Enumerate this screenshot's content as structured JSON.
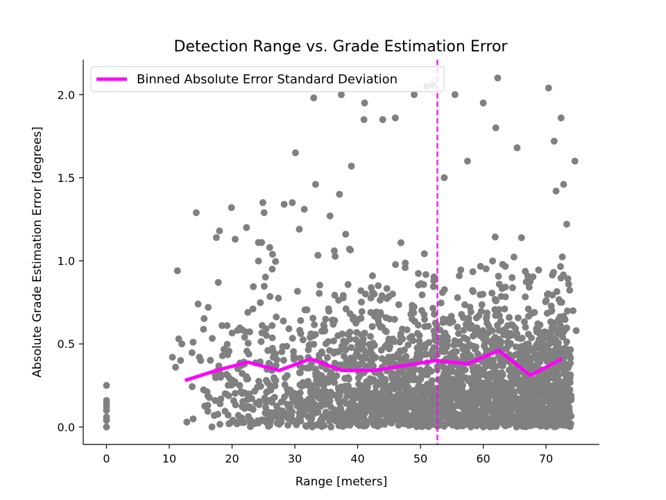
{
  "chart_data": {
    "type": "scatter",
    "title": "Detection Range vs. Grade Estimation Error",
    "xlabel": "Range [meters]",
    "ylabel": "Absolute Grade Estimation Error [degrees]",
    "xlim": [
      -3.7,
      78.5
    ],
    "ylim": [
      -0.105,
      2.21
    ],
    "xticks": [
      0,
      10,
      20,
      30,
      40,
      50,
      60,
      70
    ],
    "yticks": [
      0.0,
      0.5,
      1.0,
      1.5,
      2.0
    ],
    "xtick_labels": [
      "0",
      "10",
      "20",
      "30",
      "40",
      "50",
      "60",
      "70"
    ],
    "ytick_labels": [
      "0.0",
      "0.5",
      "1.0",
      "1.5",
      "2.0"
    ],
    "grid": false,
    "legend": {
      "placement": "top-left",
      "entries": [
        "Binned Absolute Error Standard Deviation"
      ]
    },
    "colors": {
      "points": "#808080",
      "line": "#ff00ff",
      "vline": "#ff00ff"
    },
    "scatter_points_zero_range": [
      [
        0,
        0.25
      ],
      [
        0,
        0.16
      ],
      [
        0,
        0.14
      ],
      [
        0,
        0.12
      ],
      [
        0,
        0.1
      ],
      [
        0,
        0.06
      ],
      [
        0,
        0.04
      ],
      [
        0,
        0.0
      ]
    ],
    "scatter_points_outliers": [
      [
        11.3,
        0.94
      ],
      [
        11.0,
        0.36
      ],
      [
        10.5,
        0.42
      ],
      [
        11.5,
        0.53
      ],
      [
        12.0,
        0.5
      ],
      [
        11.8,
        0.4
      ],
      [
        12.8,
        0.03
      ],
      [
        13.8,
        0.51
      ],
      [
        14.3,
        1.29
      ],
      [
        14.6,
        0.74
      ],
      [
        14.8,
        0.42
      ],
      [
        15.0,
        0.4
      ],
      [
        16.2,
        0.72
      ],
      [
        17.5,
        1.14
      ],
      [
        17.8,
        0.87
      ],
      [
        18.0,
        1.18
      ],
      [
        18.4,
        0.61
      ],
      [
        19.2,
        0.61
      ],
      [
        19.9,
        1.32
      ],
      [
        20.5,
        1.13
      ],
      [
        21.5,
        0.37
      ],
      [
        22.0,
        0.54
      ],
      [
        22.3,
        1.2
      ],
      [
        18.9,
        0.2
      ],
      [
        21.0,
        0.07
      ],
      [
        21.2,
        0.04
      ],
      [
        20.1,
        0.28
      ],
      [
        24.9,
        1.35
      ],
      [
        25.1,
        1.29
      ],
      [
        24.2,
        1.11
      ],
      [
        24.7,
        1.11
      ],
      [
        26.0,
        1.08
      ],
      [
        26.4,
        0.95
      ],
      [
        28.3,
        1.34
      ],
      [
        30.1,
        1.65
      ],
      [
        30.7,
        1.19
      ],
      [
        29.6,
        1.35
      ],
      [
        31.5,
        1.31
      ],
      [
        33.3,
        1.46
      ],
      [
        33.0,
        1.98
      ],
      [
        35.6,
        1.27
      ],
      [
        37.1,
        1.4
      ],
      [
        37.4,
        2.0
      ],
      [
        38.1,
        1.16
      ],
      [
        38.7,
        1.07
      ],
      [
        39.0,
        1.57
      ],
      [
        41.0,
        1.85
      ],
      [
        41.1,
        1.95
      ],
      [
        44.0,
        1.85
      ],
      [
        46.0,
        1.86
      ],
      [
        49.0,
        2.0
      ],
      [
        51.0,
        2.05
      ],
      [
        52.0,
        2.06
      ],
      [
        55.5,
        2.0
      ],
      [
        53.8,
        1.5
      ],
      [
        57.5,
        1.6
      ],
      [
        60.0,
        1.95
      ],
      [
        62.3,
        2.1
      ],
      [
        62.0,
        1.8
      ],
      [
        65.4,
        1.68
      ],
      [
        70.4,
        2.04
      ],
      [
        71.3,
        1.72
      ],
      [
        72.4,
        1.86
      ],
      [
        72.8,
        1.46
      ],
      [
        74.6,
        1.6
      ],
      [
        73.3,
        1.22
      ],
      [
        71.6,
        1.42
      ],
      [
        73.6,
        0.86
      ],
      [
        74.3,
        0.7
      ],
      [
        74.0,
        0.17
      ],
      [
        71.2,
        0.93
      ],
      [
        72.5,
        0.75
      ],
      [
        73.8,
        0.38
      ],
      [
        74.8,
        0.58
      ]
    ],
    "dense_cloud": {
      "description_free": true,
      "x_range": [
        12,
        74
      ],
      "y_range": [
        0,
        1.1
      ],
      "count": 2600
    },
    "series": [
      {
        "name": "Binned Absolute Error Standard Deviation",
        "x": [
          12.5,
          17.5,
          22.5,
          27.5,
          32.5,
          37.5,
          42.5,
          47.5,
          52.5,
          57.5,
          62.5,
          67.5,
          72.5
        ],
        "y": [
          0.28,
          0.34,
          0.39,
          0.34,
          0.41,
          0.34,
          0.34,
          0.37,
          0.4,
          0.38,
          0.46,
          0.31,
          0.41
        ]
      }
    ],
    "vline": {
      "x": 52.7,
      "style": "dashed"
    }
  }
}
